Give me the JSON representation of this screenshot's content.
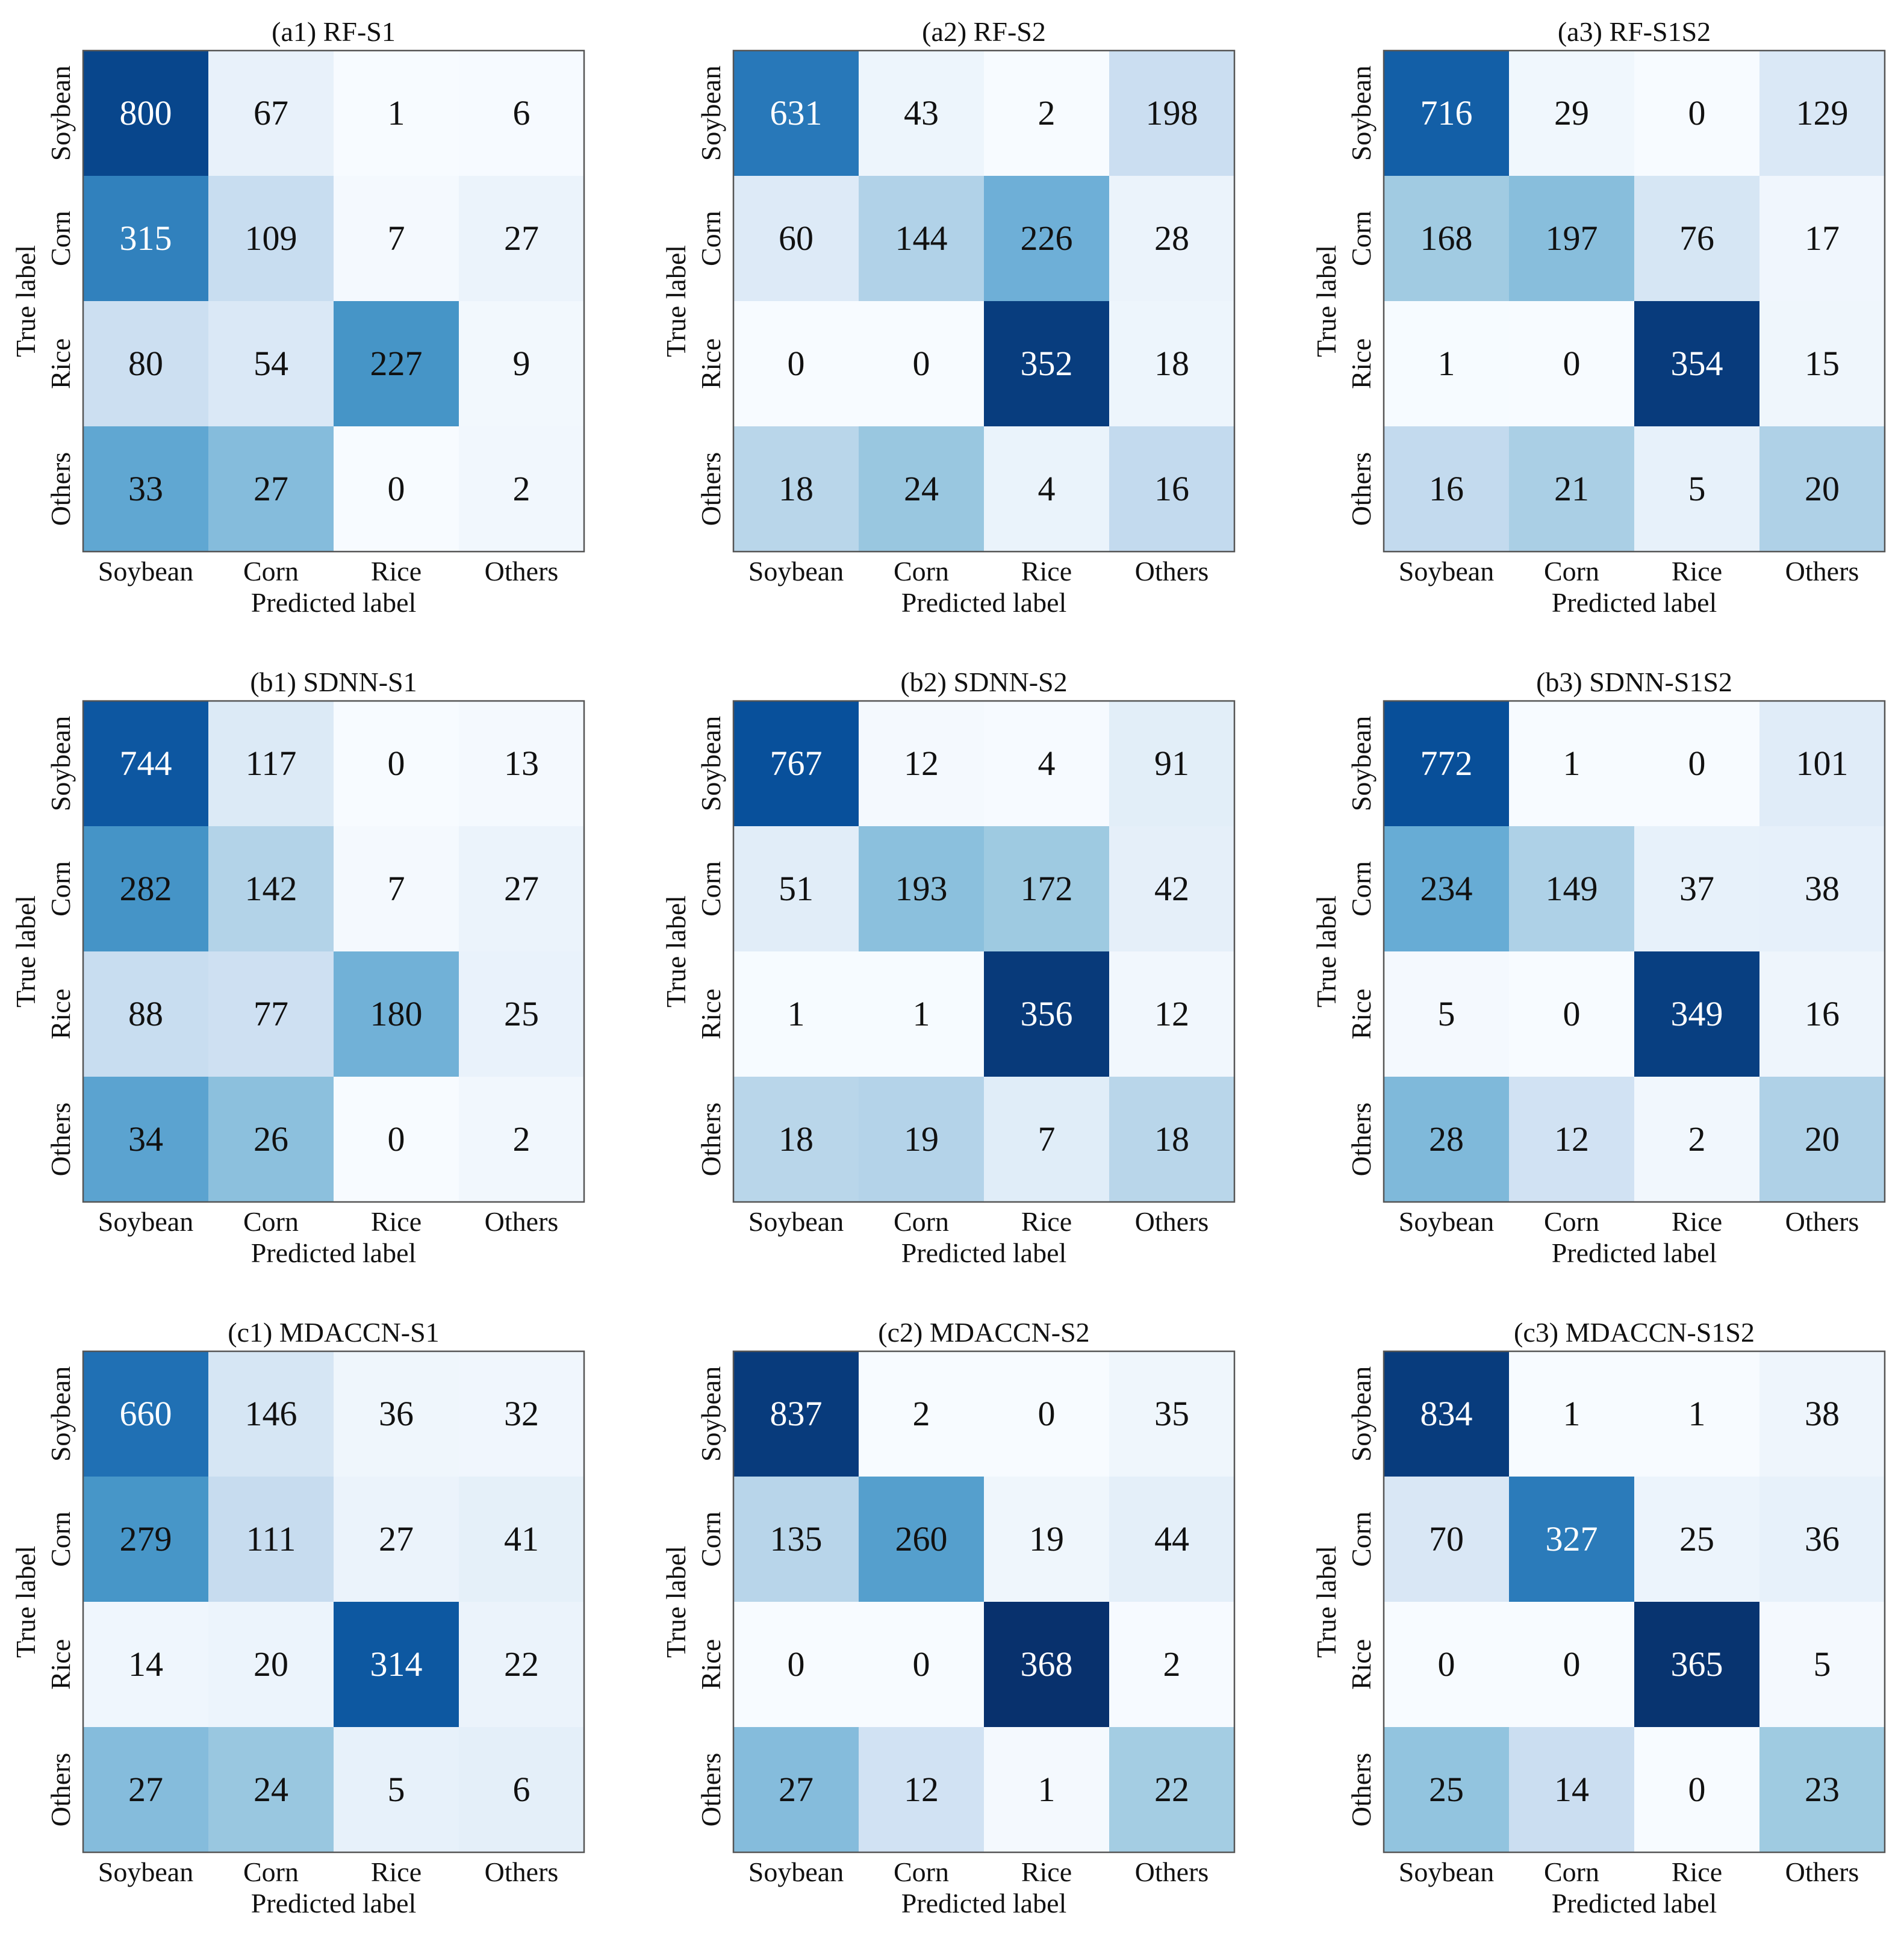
{
  "figure": {
    "true_axis_label": "True label",
    "predicted_axis_label": "Predicted label",
    "class_labels": [
      "Soybean",
      "Corn",
      "Rice",
      "Others"
    ],
    "colormap": "Blues",
    "color_low": "#f7fbff",
    "color_high": "#08306b"
  },
  "chart_data": [
    {
      "type": "heatmap",
      "title": "(a1) RF-S1",
      "xlabel": "Predicted label",
      "ylabel": "True label",
      "x_categories": [
        "Soybean",
        "Corn",
        "Rice",
        "Others"
      ],
      "y_categories": [
        "Soybean",
        "Corn",
        "Rice",
        "Others"
      ],
      "matrix": [
        [
          800,
          67,
          1,
          6
        ],
        [
          315,
          109,
          7,
          27
        ],
        [
          80,
          54,
          227,
          9
        ],
        [
          33,
          27,
          0,
          2
        ]
      ]
    },
    {
      "type": "heatmap",
      "title": "(a2) RF-S2",
      "xlabel": "Predicted label",
      "ylabel": "True label",
      "x_categories": [
        "Soybean",
        "Corn",
        "Rice",
        "Others"
      ],
      "y_categories": [
        "Soybean",
        "Corn",
        "Rice",
        "Others"
      ],
      "matrix": [
        [
          631,
          43,
          2,
          198
        ],
        [
          60,
          144,
          226,
          28
        ],
        [
          0,
          0,
          352,
          18
        ],
        [
          18,
          24,
          4,
          16
        ]
      ]
    },
    {
      "type": "heatmap",
      "title": "(a3) RF-S1S2",
      "xlabel": "Predicted label",
      "ylabel": "True label",
      "x_categories": [
        "Soybean",
        "Corn",
        "Rice",
        "Others"
      ],
      "y_categories": [
        "Soybean",
        "Corn",
        "Rice",
        "Others"
      ],
      "matrix": [
        [
          716,
          29,
          0,
          129
        ],
        [
          168,
          197,
          76,
          17
        ],
        [
          1,
          0,
          354,
          15
        ],
        [
          16,
          21,
          5,
          20
        ]
      ]
    },
    {
      "type": "heatmap",
      "title": "(b1) SDNN-S1",
      "xlabel": "Predicted label",
      "ylabel": "True label",
      "x_categories": [
        "Soybean",
        "Corn",
        "Rice",
        "Others"
      ],
      "y_categories": [
        "Soybean",
        "Corn",
        "Rice",
        "Others"
      ],
      "matrix": [
        [
          744,
          117,
          0,
          13
        ],
        [
          282,
          142,
          7,
          27
        ],
        [
          88,
          77,
          180,
          25
        ],
        [
          34,
          26,
          0,
          2
        ]
      ]
    },
    {
      "type": "heatmap",
      "title": "(b2) SDNN-S2",
      "xlabel": "Predicted label",
      "ylabel": "True label",
      "x_categories": [
        "Soybean",
        "Corn",
        "Rice",
        "Others"
      ],
      "y_categories": [
        "Soybean",
        "Corn",
        "Rice",
        "Others"
      ],
      "matrix": [
        [
          767,
          12,
          4,
          91
        ],
        [
          51,
          193,
          172,
          42
        ],
        [
          1,
          1,
          356,
          12
        ],
        [
          18,
          19,
          7,
          18
        ]
      ]
    },
    {
      "type": "heatmap",
      "title": "(b3) SDNN-S1S2",
      "xlabel": "Predicted label",
      "ylabel": "True label",
      "x_categories": [
        "Soybean",
        "Corn",
        "Rice",
        "Others"
      ],
      "y_categories": [
        "Soybean",
        "Corn",
        "Rice",
        "Others"
      ],
      "matrix": [
        [
          772,
          1,
          0,
          101
        ],
        [
          234,
          149,
          37,
          38
        ],
        [
          5,
          0,
          349,
          16
        ],
        [
          28,
          12,
          2,
          20
        ]
      ]
    },
    {
      "type": "heatmap",
      "title": "(c1) MDACCN-S1",
      "xlabel": "Predicted label",
      "ylabel": "True label",
      "x_categories": [
        "Soybean",
        "Corn",
        "Rice",
        "Others"
      ],
      "y_categories": [
        "Soybean",
        "Corn",
        "Rice",
        "Others"
      ],
      "matrix": [
        [
          660,
          146,
          36,
          32
        ],
        [
          279,
          111,
          27,
          41
        ],
        [
          14,
          20,
          314,
          22
        ],
        [
          27,
          24,
          5,
          6
        ]
      ]
    },
    {
      "type": "heatmap",
      "title": "(c2) MDACCN-S2",
      "xlabel": "Predicted label",
      "ylabel": "True label",
      "x_categories": [
        "Soybean",
        "Corn",
        "Rice",
        "Others"
      ],
      "y_categories": [
        "Soybean",
        "Corn",
        "Rice",
        "Others"
      ],
      "matrix": [
        [
          837,
          2,
          0,
          35
        ],
        [
          135,
          260,
          19,
          44
        ],
        [
          0,
          0,
          368,
          2
        ],
        [
          27,
          12,
          1,
          22
        ]
      ]
    },
    {
      "type": "heatmap",
      "title": "(c3) MDACCN-S1S2",
      "xlabel": "Predicted label",
      "ylabel": "True label",
      "x_categories": [
        "Soybean",
        "Corn",
        "Rice",
        "Others"
      ],
      "y_categories": [
        "Soybean",
        "Corn",
        "Rice",
        "Others"
      ],
      "matrix": [
        [
          834,
          1,
          1,
          38
        ],
        [
          70,
          327,
          25,
          36
        ],
        [
          0,
          0,
          365,
          5
        ],
        [
          25,
          14,
          0,
          23
        ]
      ]
    }
  ]
}
